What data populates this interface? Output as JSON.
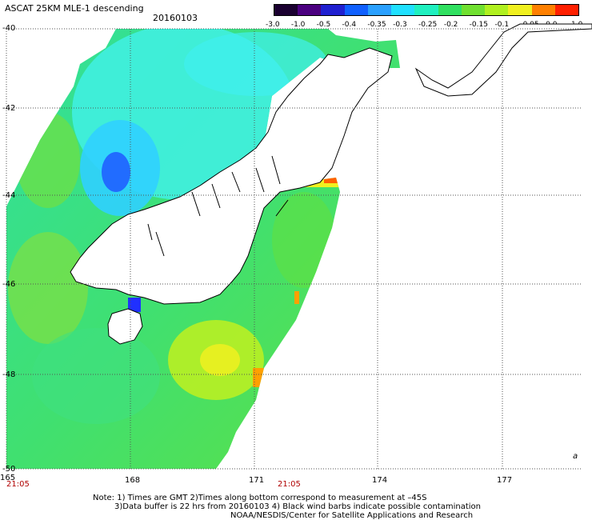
{
  "title": "ASCAT 25KM MLE-1 descending",
  "date": "20160103",
  "colorbar": {
    "labels": [
      "-3.0",
      "-1.0",
      "-0.5",
      "-0.4",
      "-0.35",
      "-0.3",
      "-0.25",
      "-0.2",
      "-0.15",
      "-0.1",
      "-0.05",
      "0.0",
      "1.0"
    ],
    "colors": [
      "#1a0030",
      "#4b0080",
      "#2020d0",
      "#1060ff",
      "#2aa0ff",
      "#20e0ff",
      "#20f0c0",
      "#30e060",
      "#70e030",
      "#b0f020",
      "#f0f020",
      "#ff8000",
      "#ff2000"
    ]
  },
  "axes": {
    "lon_labels": [
      "165",
      "168",
      "171",
      "174",
      "177"
    ],
    "lat_labels": [
      "-40",
      "-42",
      "-44",
      "-46",
      "-48",
      "-50"
    ]
  },
  "time_labels": [
    "21:05",
    "21:05"
  ],
  "notes": [
    "Note: 1) Times are GMT 2)Times along bottom correspond to measurement at –45S",
    "3)Data buffer is 22 hrs from 20160103 4) Black wind barbs indicate possible contamination",
    "NOAA/NESDIS/Center for Satellite Applications and Research"
  ],
  "colors": {
    "land": "#ffffff",
    "coast": "#000000",
    "grid": "#555555"
  }
}
